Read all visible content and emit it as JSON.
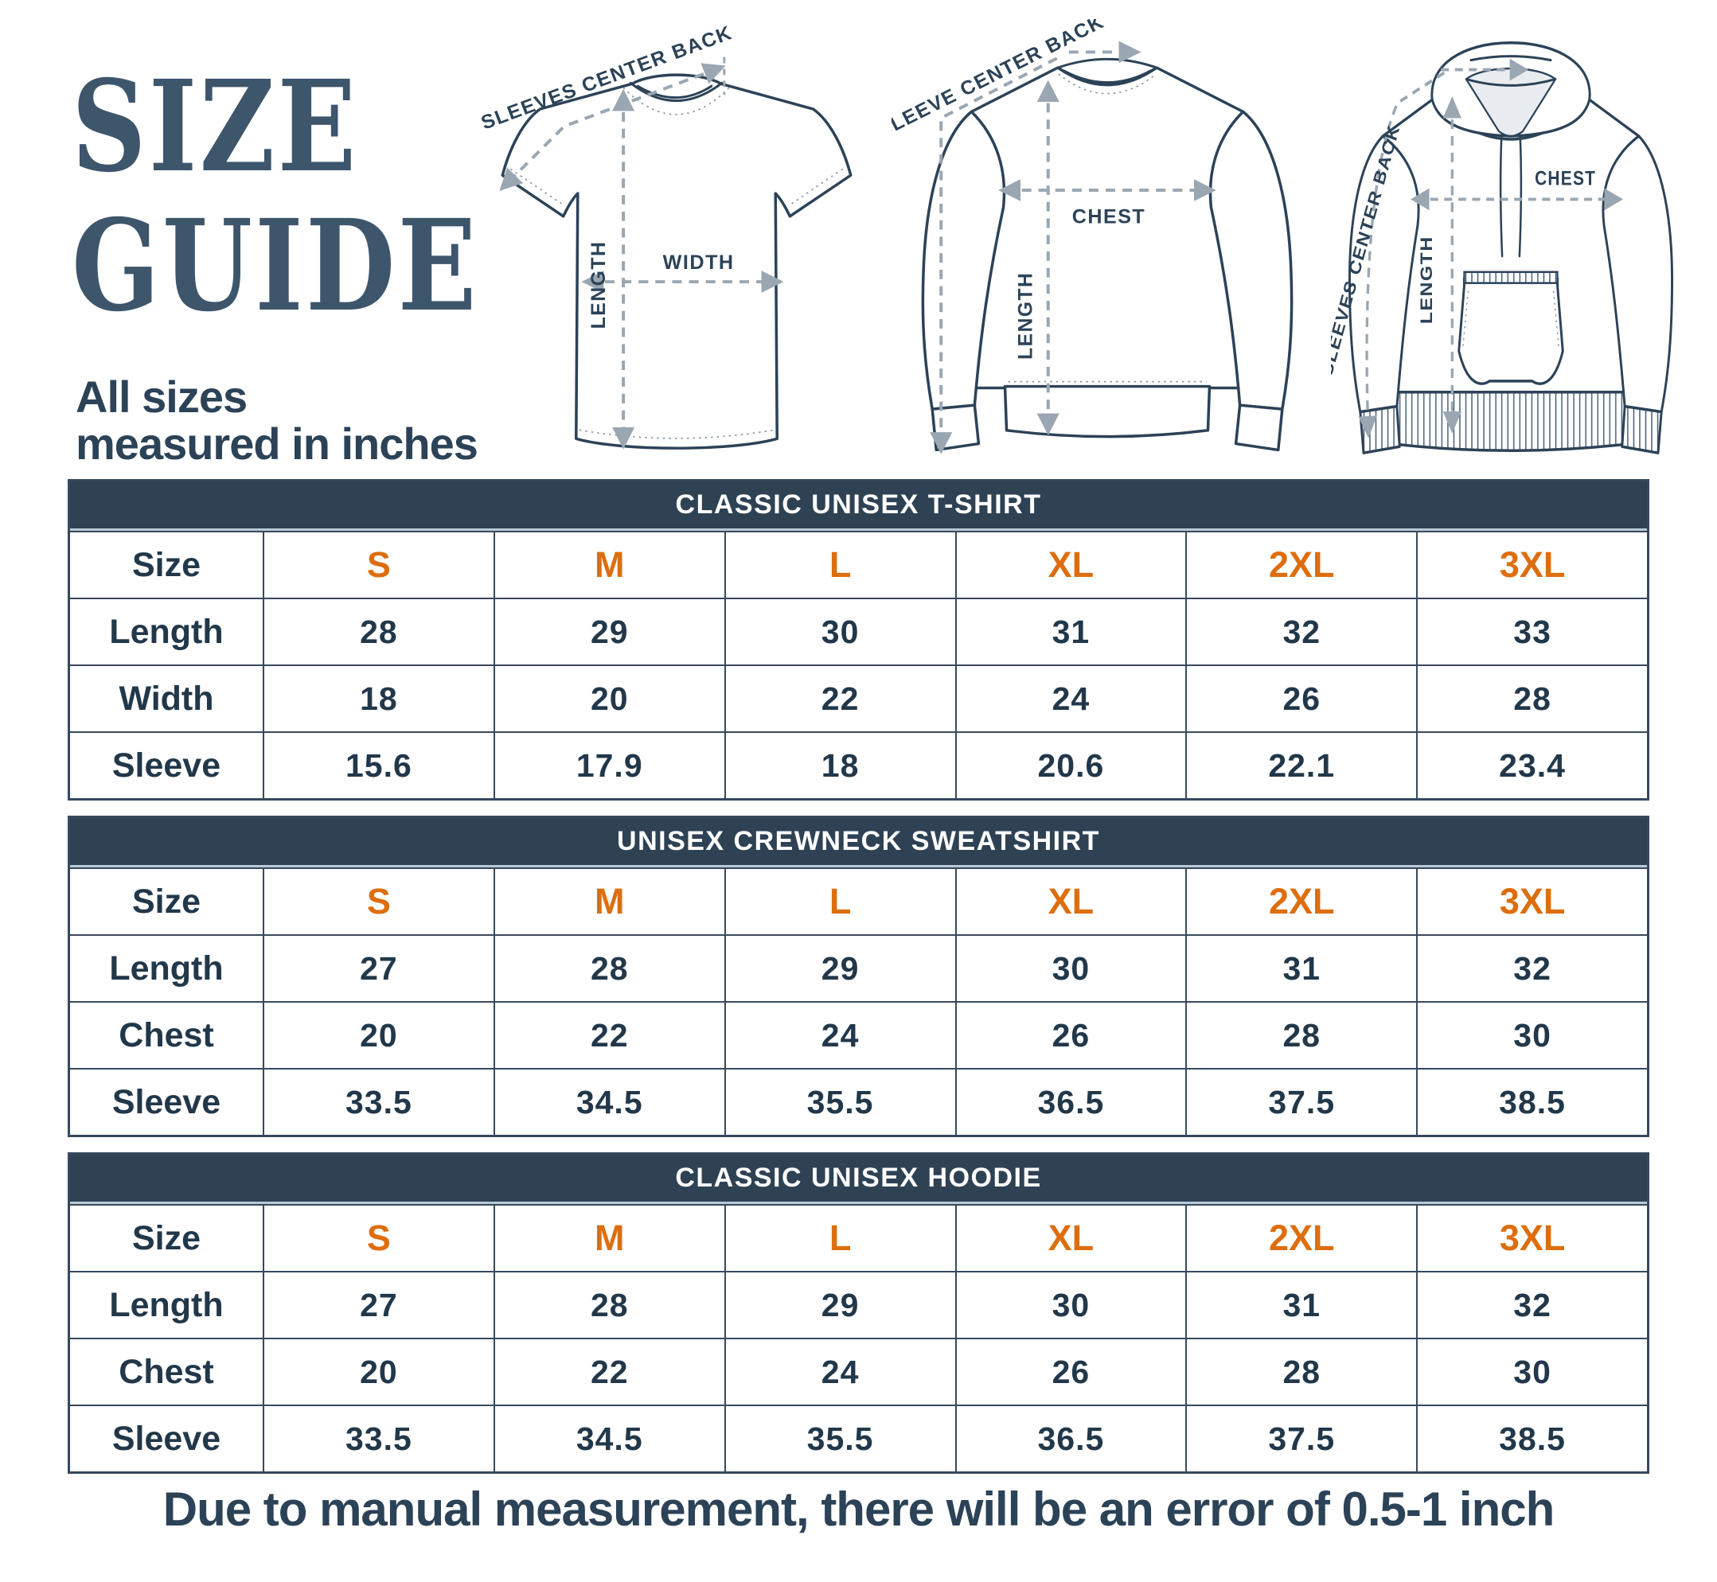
{
  "header": {
    "title_line1": "SIZE",
    "title_line2": "GUIDE",
    "subtitle_line1": "All sizes",
    "subtitle_line2": "measured in inches"
  },
  "diagrams": [
    {
      "name": "classic-unisex-t-shirt",
      "labels": {
        "sleeve": "SLEEVES CENTER BACK",
        "horizontal": "WIDTH",
        "vertical": "LENGTH"
      }
    },
    {
      "name": "unisex-crewneck-sweatshirt",
      "labels": {
        "sleeve": "SLEEVE CENTER BACK",
        "horizontal": "CHEST",
        "vertical": "LENGTH"
      }
    },
    {
      "name": "classic-unisex-hoodie",
      "labels": {
        "sleeve": "SLEEVES CENTER BACK",
        "horizontal": "CHEST",
        "vertical": "LENGTH"
      }
    }
  ],
  "tables": [
    {
      "title": "CLASSIC UNISEX T-SHIRT",
      "size_label": "Size",
      "sizes": [
        "S",
        "M",
        "L",
        "XL",
        "2XL",
        "3XL"
      ],
      "rows": [
        {
          "label": "Length",
          "values": [
            "28",
            "29",
            "30",
            "31",
            "32",
            "33"
          ]
        },
        {
          "label": "Width",
          "values": [
            "18",
            "20",
            "22",
            "24",
            "26",
            "28"
          ]
        },
        {
          "label": "Sleeve",
          "values": [
            "15.6",
            "17.9",
            "18",
            "20.6",
            "22.1",
            "23.4"
          ]
        }
      ]
    },
    {
      "title": "UNISEX CREWNECK SWEATSHIRT",
      "size_label": "Size",
      "sizes": [
        "S",
        "M",
        "L",
        "XL",
        "2XL",
        "3XL"
      ],
      "rows": [
        {
          "label": "Length",
          "values": [
            "27",
            "28",
            "29",
            "30",
            "31",
            "32"
          ]
        },
        {
          "label": "Chest",
          "values": [
            "20",
            "22",
            "24",
            "26",
            "28",
            "30"
          ]
        },
        {
          "label": "Sleeve",
          "values": [
            "33.5",
            "34.5",
            "35.5",
            "36.5",
            "37.5",
            "38.5"
          ]
        }
      ]
    },
    {
      "title": "CLASSIC UNISEX HOODIE",
      "size_label": "Size",
      "sizes": [
        "S",
        "M",
        "L",
        "XL",
        "2XL",
        "3XL"
      ],
      "rows": [
        {
          "label": "Length",
          "values": [
            "27",
            "28",
            "29",
            "30",
            "31",
            "32"
          ]
        },
        {
          "label": "Chest",
          "values": [
            "20",
            "22",
            "24",
            "26",
            "28",
            "30"
          ]
        },
        {
          "label": "Sleeve",
          "values": [
            "33.5",
            "34.5",
            "35.5",
            "36.5",
            "37.5",
            "38.5"
          ]
        }
      ]
    }
  ],
  "footnote": "Due to manual measurement, there will be an error of 0.5-1 inch",
  "colors": {
    "header_bg": "#2e4254",
    "accent_orange": "#dd6e0f",
    "ink": "#22384a",
    "title_slate": "#3e566c",
    "measure_gray": "#9aa7b2"
  }
}
